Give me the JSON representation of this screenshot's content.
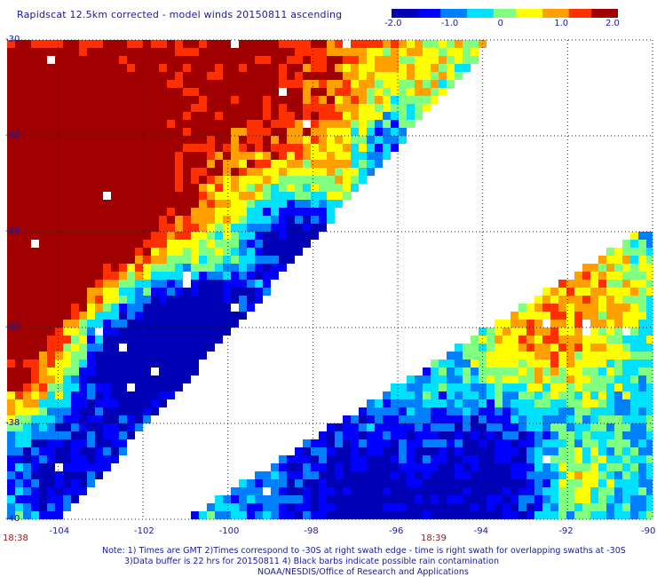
{
  "title": "Rapidscat 12.5km corrected - model winds 20150811 ascending",
  "colorbar": {
    "min": -2.0,
    "max": 2.0,
    "tick_labels": [
      "-2.0",
      "-1.0",
      "0",
      "1.0",
      "2.0"
    ],
    "colors": [
      "#0000b4",
      "#0000ff",
      "#0080ff",
      "#00e0ff",
      "#80ff80",
      "#ffff00",
      "#ffa000",
      "#ff3000",
      "#a00000"
    ]
  },
  "map": {
    "lon_range": [
      -105.2,
      -90
    ],
    "lat_range": [
      -40,
      -30
    ],
    "lon_ticks": [
      "-104",
      "-102",
      "-100",
      "-98",
      "-96",
      "-94",
      "-92",
      "-90"
    ],
    "lat_ticks": [
      "-30",
      "-32",
      "-34",
      "-36",
      "-38",
      "-40"
    ],
    "grid": "dotted"
  },
  "times": {
    "left": "18:38",
    "right": "18:39"
  },
  "notes": [
    "Note: 1) Times are GMT 2)Times correspond to -30S at right swath edge - time is right swath for overlapping swaths at -30S",
    "3)Data buffer is 22 hrs for 20150811 4) Black barbs indicate possible rain contamination",
    "NOAA/NESDIS/Office of Research and Applications"
  ]
}
